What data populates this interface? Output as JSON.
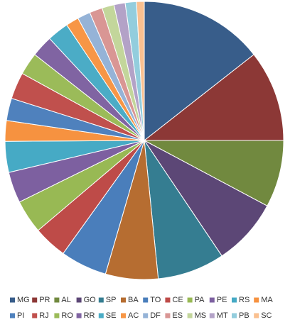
{
  "chart_data": {
    "type": "pie",
    "categories": [
      "MG",
      "PR",
      "AL",
      "GO",
      "SP",
      "BA",
      "TO",
      "CE",
      "PA",
      "PE",
      "RS",
      "MA",
      "PI",
      "RJ",
      "RO",
      "RR",
      "SE",
      "AC",
      "DF",
      "ES",
      "MS",
      "MT",
      "PB",
      "SC"
    ],
    "values": [
      14.4,
      10.6,
      7.8,
      7.8,
      7.8,
      6.1,
      5.4,
      3.9,
      3.9,
      3.6,
      3.6,
      2.4,
      2.6,
      3.1,
      2.6,
      2.5,
      2.5,
      1.5,
      1.5,
      1.5,
      1.4,
      1.3,
      1.3,
      0.9
    ],
    "colors": [
      "#385D8A",
      "#8C3836",
      "#71893F",
      "#5C4776",
      "#357D91",
      "#B66D31",
      "#4A7EBB",
      "#BE4B48",
      "#98B954",
      "#7D60A0",
      "#46AAC5",
      "#F69240",
      "#4F81BD",
      "#C0504D",
      "#9BBB59",
      "#8064A2",
      "#4BACC6",
      "#F79646",
      "#95B3D7",
      "#D99694",
      "#C3D69B",
      "#B3A2C7",
      "#93CDDD",
      "#FAC090"
    ],
    "legend": "bottom"
  }
}
